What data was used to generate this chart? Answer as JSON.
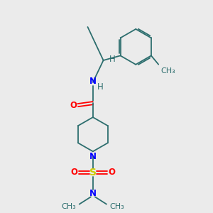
{
  "bg_color": "#ebebeb",
  "bond_color": "#2d6e6e",
  "bond_width": 1.5,
  "n_color": "#0000ff",
  "o_color": "#ff0000",
  "s_color": "#cccc00",
  "h_color": "#2d6e6e",
  "font_size": 8.5,
  "xlim": [
    0,
    10
  ],
  "ylim": [
    0,
    10
  ]
}
